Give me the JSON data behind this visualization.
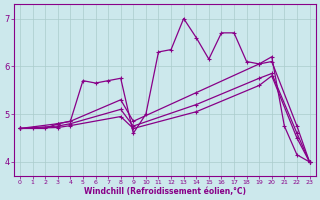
{
  "xlabel": "Windchill (Refroidissement éolien,°C)",
  "background_color": "#cce8ec",
  "line_color": "#880088",
  "grid_color": "#aacccc",
  "xlim": [
    -0.5,
    23.5
  ],
  "ylim": [
    3.7,
    7.3
  ],
  "yticks": [
    4,
    5,
    6,
    7
  ],
  "xticks": [
    0,
    1,
    2,
    3,
    4,
    5,
    6,
    7,
    8,
    9,
    10,
    11,
    12,
    13,
    14,
    15,
    16,
    17,
    18,
    19,
    20,
    21,
    22,
    23
  ],
  "jagged": [
    4.7,
    4.7,
    4.7,
    4.8,
    4.85,
    5.7,
    5.65,
    5.7,
    5.75,
    4.6,
    5.0,
    6.3,
    6.35,
    7.0,
    6.6,
    6.15,
    6.7,
    6.7,
    6.1,
    6.05,
    6.2,
    4.75,
    4.15,
    4.0
  ],
  "line2_x": [
    0,
    3,
    4,
    8,
    9,
    14,
    19,
    20,
    22,
    23
  ],
  "line2_y": [
    4.7,
    4.8,
    4.85,
    5.3,
    4.85,
    5.45,
    6.05,
    6.1,
    4.75,
    4.0
  ],
  "line3_x": [
    0,
    3,
    4,
    8,
    9,
    14,
    19,
    20,
    22,
    23
  ],
  "line3_y": [
    4.7,
    4.75,
    4.8,
    5.1,
    4.75,
    5.2,
    5.75,
    5.85,
    4.6,
    4.0
  ],
  "line4_x": [
    0,
    3,
    4,
    8,
    9,
    14,
    19,
    20,
    22,
    23
  ],
  "line4_y": [
    4.7,
    4.72,
    4.76,
    4.95,
    4.7,
    5.05,
    5.6,
    5.8,
    4.5,
    4.0
  ],
  "marker": "+",
  "markersize": 3,
  "linewidth": 0.9
}
